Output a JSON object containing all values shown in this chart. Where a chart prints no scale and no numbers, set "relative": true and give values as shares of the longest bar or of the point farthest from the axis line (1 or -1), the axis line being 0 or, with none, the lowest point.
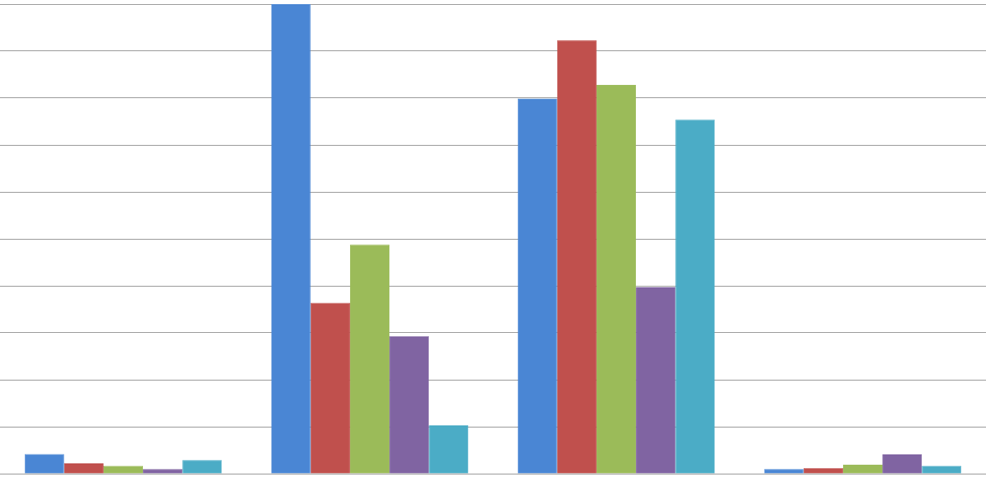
{
  "chart_data": {
    "type": "bar",
    "relative": true,
    "grid": "y",
    "legend": false,
    "categories": [
      null,
      null,
      null,
      null
    ],
    "series": [
      {
        "color": "#4a86d4",
        "values": [
          0.042,
          1,
          0.799,
          0.01
        ]
      },
      {
        "color": "#c0504d",
        "values": [
          0.022,
          0.364,
          0.923,
          0.012
        ]
      },
      {
        "color": "#9bbb59",
        "values": [
          0.017,
          0.488,
          0.828,
          0.019
        ]
      },
      {
        "color": "#8064a2",
        "values": [
          0.01,
          0.293,
          0.397,
          0.041
        ]
      },
      {
        "color": "#4bacc6",
        "values": [
          0.029,
          0.103,
          0.754,
          0.017
        ]
      }
    ]
  }
}
